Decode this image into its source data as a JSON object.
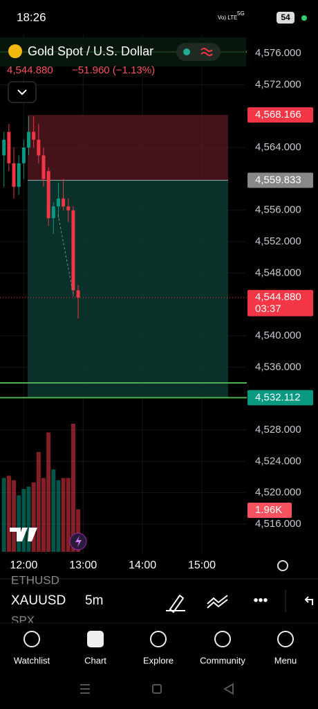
{
  "status_bar": {
    "time": "18:26",
    "network": "Vo) LTE",
    "signal": "5G",
    "battery": "54"
  },
  "header": {
    "title": "Gold Spot / U.S. Dollar",
    "price": "4,544.880",
    "change": "−51.960 (−1.13%)"
  },
  "chart_data": {
    "type": "candlestick",
    "x": [
      "11:40",
      "11:45",
      "11:50",
      "11:55",
      "12:00",
      "12:05",
      "12:10",
      "12:15",
      "12:20",
      "12:25",
      "12:30",
      "12:35",
      "12:40",
      "12:45",
      "12:50",
      "12:55"
    ],
    "open": [
      4563,
      4566,
      4562,
      4559,
      4562,
      4564,
      4566,
      4565,
      4563,
      4561,
      4555,
      4556.5,
      4557.5,
      4556.5,
      4556,
      4545.8
    ],
    "high": [
      4566,
      4567,
      4564,
      4563,
      4565,
      4568,
      4568,
      4567,
      4564,
      4561.5,
      4557,
      4559.5,
      4560,
      4557.5,
      4556.5,
      4546.5
    ],
    "low": [
      4559,
      4561,
      4557.5,
      4558,
      4560,
      4563,
      4564,
      4562,
      4559,
      4554,
      4553,
      4555,
      4556,
      4554.5,
      4545,
      4542.2
    ],
    "close": [
      4565,
      4562,
      4559,
      4562,
      4564,
      4566,
      4565,
      4563,
      4560,
      4555,
      4556.5,
      4557.5,
      4556.5,
      4556,
      4545.8,
      4544.88
    ],
    "volume": [
      3400,
      3500,
      3300,
      2600,
      2900,
      3000,
      3200,
      4600,
      3400,
      5500,
      3800,
      3300,
      3400,
      3400,
      5900,
      1960
    ],
    "volume_label": "1.96K",
    "up_color": "#089981",
    "down_color": "#f23645",
    "xlim": [
      "11:36",
      "15:44"
    ],
    "xticks": [
      "12:00",
      "13:00",
      "14:00",
      "15:00"
    ],
    "ylim": [
      4512.2,
      4578.4
    ],
    "yticks": [
      {
        "value": 4576,
        "label": "4,576.000"
      },
      {
        "value": 4572,
        "label": "4,572.000"
      },
      {
        "value": 4564,
        "label": "4,564.000"
      },
      {
        "value": 4556,
        "label": "4,556.000"
      },
      {
        "value": 4552,
        "label": "4,552.000"
      },
      {
        "value": 4548,
        "label": "4,548.000"
      },
      {
        "value": 4540,
        "label": "4,540.000"
      },
      {
        "value": 4536,
        "label": "4,536.000"
      },
      {
        "value": 4528,
        "label": "4,528.000"
      },
      {
        "value": 4524,
        "label": "4,524.000"
      },
      {
        "value": 4520,
        "label": "4,520.000"
      },
      {
        "value": 4516,
        "label": "4,516.000"
      }
    ],
    "alert_lines": [
      4576.2,
      4534
    ],
    "stop": {
      "value": 4568.166,
      "label": "4,568.166"
    },
    "entry": {
      "value": 4559.833,
      "label": "4,559.833"
    },
    "last": {
      "value": 4544.88,
      "label": "4,544.880",
      "countdown": "03:37"
    },
    "target": {
      "value": 4532.112,
      "label": "4,532.112"
    }
  },
  "toolbar": {
    "prev_symbol": "ETHUSD",
    "symbol": "XAUUSD",
    "interval": "5m",
    "next_symbol": "SPX"
  },
  "nav": [
    "Watchlist",
    "Chart",
    "Explore",
    "Community",
    "Menu"
  ]
}
